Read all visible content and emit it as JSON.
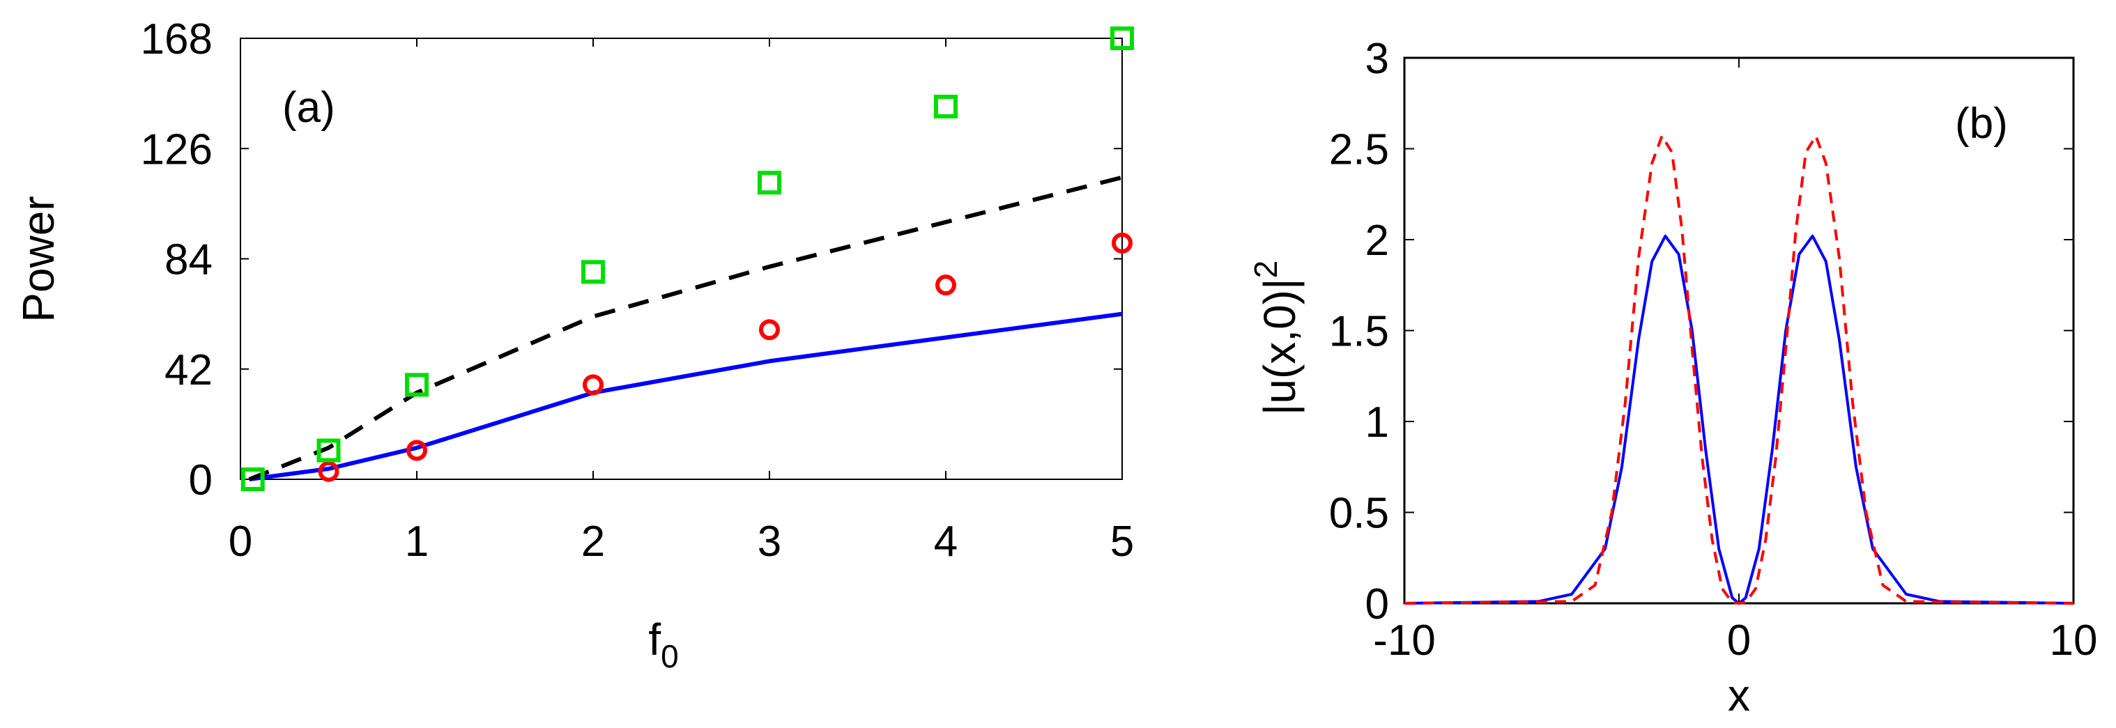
{
  "chart_data": [
    {
      "type": "line",
      "panel_label": "(a)",
      "xlabel": "f",
      "xlabel_sub": "0",
      "ylabel": "Power",
      "xlim": [
        0,
        5
      ],
      "ylim": [
        0,
        168
      ],
      "xticks": [
        "0",
        "1",
        "2",
        "3",
        "4",
        "5"
      ],
      "yticks": [
        "0",
        "42",
        "84",
        "126",
        "168"
      ],
      "grid": false,
      "series": [
        {
          "style": "solid-line",
          "color": "#0000ff",
          "x": [
            0.05,
            0.5,
            1,
            2,
            3,
            4,
            5
          ],
          "y": [
            0,
            4,
            12,
            33,
            45,
            54,
            63
          ]
        },
        {
          "style": "dashed-line",
          "color": "#000000",
          "x": [
            0.05,
            0.5,
            1,
            2,
            3,
            4,
            5
          ],
          "y": [
            0,
            12,
            33,
            62,
            81,
            98,
            115
          ]
        },
        {
          "style": "circle-markers",
          "color": "#ff0000",
          "x": [
            0.5,
            1,
            2,
            3,
            4,
            5
          ],
          "y": [
            3,
            11,
            36,
            57,
            74,
            90
          ]
        },
        {
          "style": "square-markers",
          "color": "#00dd00",
          "x": [
            0.07,
            0.5,
            1,
            2,
            3,
            4,
            5
          ],
          "y": [
            0,
            11,
            36,
            79,
            113,
            142,
            168
          ]
        }
      ]
    },
    {
      "type": "line",
      "panel_label": "(b)",
      "xlabel": "x",
      "ylabel": "|u(x,0)|",
      "ylabel_sup": "2",
      "xlim": [
        -10,
        10
      ],
      "ylim": [
        0,
        3
      ],
      "xticks": [
        "-10",
        "0",
        "10"
      ],
      "yticks": [
        "0",
        "0.5",
        "1",
        "1.5",
        "2",
        "2.5",
        "3"
      ],
      "grid": false,
      "series": [
        {
          "style": "solid-line",
          "color": "#0000ff",
          "x": [
            -10,
            -6,
            -5,
            -4,
            -3.5,
            -3,
            -2.6,
            -2.2,
            -1.8,
            -1.4,
            -1,
            -0.6,
            -0.2,
            0,
            0.2,
            0.6,
            1,
            1.4,
            1.8,
            2.2,
            2.6,
            3,
            3.5,
            4,
            5,
            6,
            10
          ],
          "y": [
            0,
            0.01,
            0.05,
            0.3,
            0.75,
            1.45,
            1.88,
            2.02,
            1.92,
            1.5,
            0.85,
            0.3,
            0.03,
            0,
            0.03,
            0.3,
            0.85,
            1.5,
            1.92,
            2.02,
            1.88,
            1.45,
            0.75,
            0.3,
            0.05,
            0.01,
            0
          ]
        },
        {
          "style": "dashed-line",
          "color": "#ff0000",
          "x": [
            -10,
            -5,
            -4.3,
            -3.8,
            -3.4,
            -3,
            -2.6,
            -2.3,
            -2,
            -1.7,
            -1.4,
            -1.1,
            -0.8,
            -0.5,
            -0.2,
            0,
            0.2,
            0.5,
            0.8,
            1.1,
            1.4,
            1.7,
            2,
            2.3,
            2.6,
            3,
            3.4,
            3.8,
            4.3,
            5,
            10
          ],
          "y": [
            0,
            0.01,
            0.1,
            0.5,
            1.1,
            1.9,
            2.42,
            2.57,
            2.48,
            2.05,
            1.4,
            0.8,
            0.35,
            0.08,
            0.005,
            0,
            0.005,
            0.08,
            0.35,
            0.8,
            1.4,
            2.05,
            2.48,
            2.57,
            2.42,
            1.9,
            1.1,
            0.5,
            0.1,
            0.01,
            0
          ]
        }
      ]
    }
  ]
}
